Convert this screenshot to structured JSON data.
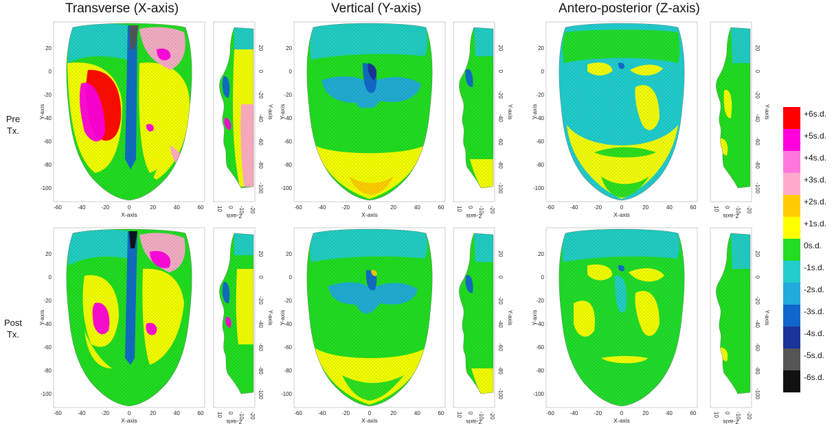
{
  "columns": [
    {
      "title": "Transverse (X-axis)"
    },
    {
      "title": "Vertical (Y-axis)"
    },
    {
      "title": "Antero-posterior (Z-axis)"
    }
  ],
  "rows": [
    {
      "line1": "Pre",
      "line2": "Tx."
    },
    {
      "line1": "Post",
      "line2": "Tx."
    }
  ],
  "front_axes": {
    "xlabel": "X-axis",
    "ylabel": "Y-axis",
    "xticks": [
      "-60",
      "-40",
      "-20",
      "0",
      "20",
      "40",
      "60"
    ],
    "yticks": [
      "20",
      "0",
      "-20",
      "-40",
      "-60",
      "-80",
      "-100"
    ]
  },
  "side_axes": {
    "xlabel": "Z-axis",
    "ylabel": "Y-axis",
    "xticks": [
      "10",
      "0",
      "-10",
      "-20"
    ],
    "yticks": [
      "20",
      "0",
      "-20",
      "-40",
      "-60",
      "-80",
      "-100"
    ]
  },
  "legend": [
    {
      "label": "+6s.d.",
      "color": "#ff0000"
    },
    {
      "label": "+5s.d.",
      "color": "#ff00dd"
    },
    {
      "label": "+4s.d.",
      "color": "#ff77dd"
    },
    {
      "label": "+3s.d.",
      "color": "#ffaacc"
    },
    {
      "label": "+2s.d.",
      "color": "#ffcc00"
    },
    {
      "label": "+1s.d.",
      "color": "#ffff00"
    },
    {
      "label": "0s.d.",
      "color": "#22dd22"
    },
    {
      "label": "-1s.d.",
      "color": "#22cccc"
    },
    {
      "label": "-2s.d.",
      "color": "#22aadd"
    },
    {
      "label": "-3s.d.",
      "color": "#1166cc"
    },
    {
      "label": "-4s.d.",
      "color": "#1a3399"
    },
    {
      "label": "-5s.d.",
      "color": "#555555"
    },
    {
      "label": "-6s.d.",
      "color": "#111111"
    }
  ]
}
